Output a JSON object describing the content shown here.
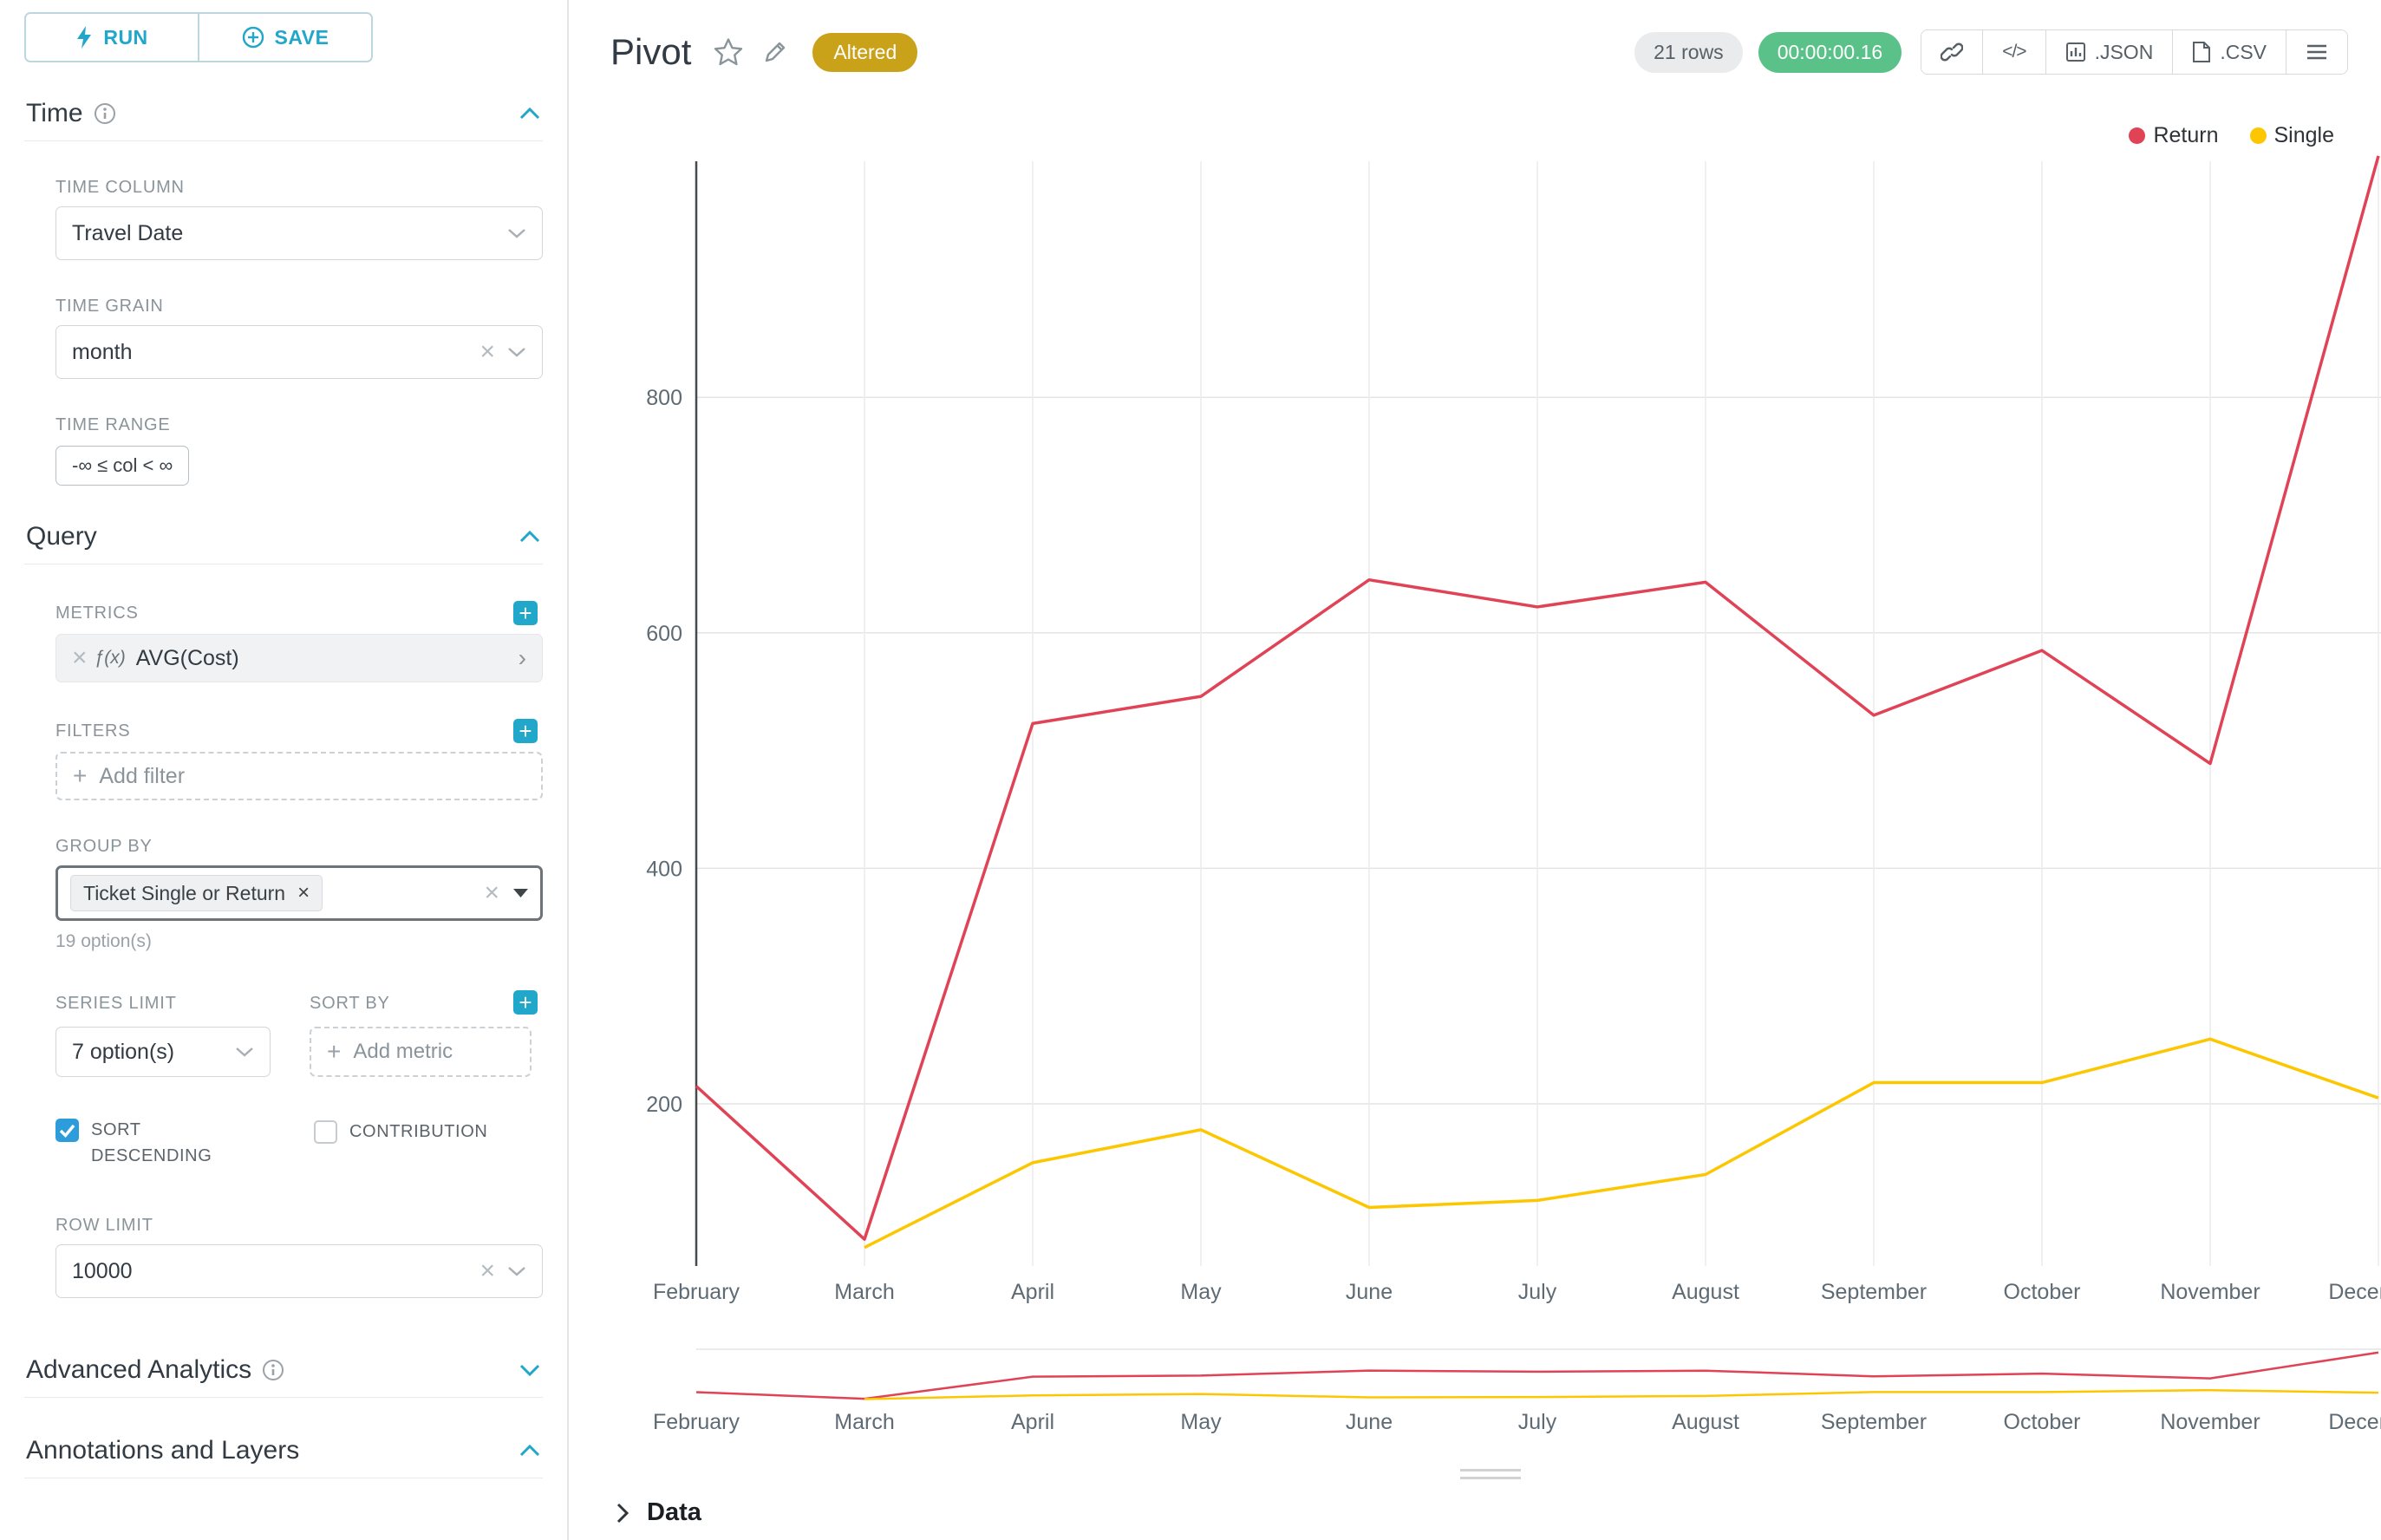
{
  "colors": {
    "accent": "#20a7c9",
    "altered_badge_bg": "#c9a21a",
    "timer_bg": "#5ac189",
    "return_series": "#e04355",
    "single_series": "#fcc700"
  },
  "sidebar": {
    "run_label": "RUN",
    "save_label": "SAVE",
    "time": {
      "title": "Time",
      "time_column_label": "TIME COLUMN",
      "time_column_value": "Travel Date",
      "time_grain_label": "TIME GRAIN",
      "time_grain_value": "month",
      "time_range_label": "TIME RANGE",
      "time_range_value": "-∞ ≤ col < ∞"
    },
    "query": {
      "title": "Query",
      "metrics_label": "METRICS",
      "metric_fx": "ƒ(x)",
      "metric_value": "AVG(Cost)",
      "filters_label": "FILTERS",
      "add_filter_placeholder": "Add filter",
      "group_by_label": "GROUP BY",
      "group_by_tag": "Ticket Single or Return",
      "group_by_hint": "19 option(s)",
      "series_limit_label": "SERIES LIMIT",
      "series_limit_value": "7 option(s)",
      "sort_by_label": "SORT BY",
      "add_metric_placeholder": "Add metric",
      "sort_descending_label": "SORT DESCENDING",
      "contribution_label": "CONTRIBUTION",
      "row_limit_label": "ROW LIMIT",
      "row_limit_value": "10000"
    },
    "advanced_analytics_title": "Advanced Analytics",
    "annotations_title": "Annotations and Layers"
  },
  "header": {
    "title": "Pivot",
    "altered_badge": "Altered",
    "rows_badge": "21 rows",
    "timer": "00:00:00.16",
    "code_label": "</>",
    "json_label": ".JSON",
    "csv_label": ".CSV"
  },
  "chart_data": {
    "type": "line",
    "title": "Pivot",
    "x": [
      "February",
      "March",
      "April",
      "May",
      "June",
      "July",
      "August",
      "September",
      "October",
      "November",
      "December"
    ],
    "series": [
      {
        "name": "Return",
        "color": "#e04355",
        "values": [
          215,
          85,
          523,
          546,
          645,
          622,
          643,
          530,
          585,
          489,
          1005
        ]
      },
      {
        "name": "Single",
        "color": "#fcc700",
        "values": [
          null,
          78,
          150,
          178,
          112,
          118,
          140,
          218,
          218,
          255,
          205
        ]
      }
    ],
    "yticks": [
      200,
      400,
      600,
      800
    ],
    "ylim": [
      50,
      1010
    ],
    "grid": true,
    "legend_position": "top-right",
    "has_brush_preview": true
  },
  "data_panel": {
    "label": "Data"
  }
}
